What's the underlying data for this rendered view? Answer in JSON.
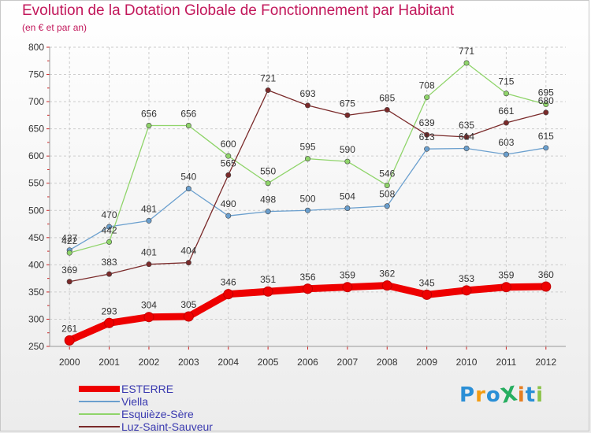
{
  "title": "Evolution de la Dotation Globale de Fonctionnement par Habitant",
  "subtitle": "(en € et par an)",
  "logo": {
    "text": "ProXiti",
    "letters": [
      "P",
      "r",
      "o",
      "X",
      "i",
      "t",
      "i"
    ],
    "colors": [
      "#2a8fd6",
      "#f39c12",
      "#2a8fd6",
      "#27ae60",
      "#e67e22",
      "#2a8fd6",
      "#8bc34a"
    ]
  },
  "chart_data": {
    "type": "line",
    "x": [
      "2000",
      "2001",
      "2002",
      "2003",
      "2004",
      "2005",
      "2006",
      "2007",
      "2008",
      "2009",
      "2010",
      "2011",
      "2012"
    ],
    "ylim": [
      250,
      800
    ],
    "yticks": [
      "250",
      "300",
      "350",
      "400",
      "450",
      "500",
      "550",
      "600",
      "650",
      "700",
      "750",
      "800"
    ],
    "xlabel": "",
    "ylabel": "",
    "grid": true,
    "legend_position": "bottom-left",
    "series": [
      {
        "name": "ESTERRE",
        "color": "#ee0000",
        "values": [
          261,
          293,
          304,
          305,
          346,
          351,
          356,
          359,
          362,
          345,
          353,
          359,
          360
        ],
        "labels": [
          "261",
          "293",
          "304",
          "305",
          "346",
          "351",
          "356",
          "359",
          "362",
          "345",
          "353",
          "359",
          "360"
        ]
      },
      {
        "name": "Viella",
        "color": "#6a9fce",
        "values": [
          427,
          470,
          481,
          540,
          490,
          498,
          500,
          504,
          508,
          613,
          614,
          603,
          615
        ],
        "labels": [
          "427",
          "470",
          "481",
          "540",
          "490",
          "498",
          "500",
          "504",
          "508",
          "613",
          "614",
          "603",
          "615"
        ]
      },
      {
        "name": "Esquièze-Sère",
        "color": "#8fd46a",
        "values": [
          422,
          442,
          656,
          656,
          600,
          550,
          595,
          590,
          546,
          708,
          771,
          715,
          695
        ],
        "labels": [
          "422",
          "442",
          "656",
          "656",
          "600",
          "550",
          "595",
          "590",
          "546",
          "708",
          "771",
          "715",
          "695"
        ]
      },
      {
        "name": "Luz-Saint-Sauveur",
        "color": "#7a2a2a",
        "values": [
          369,
          383,
          401,
          404,
          565,
          721,
          693,
          675,
          685,
          639,
          635,
          661,
          680
        ],
        "labels": [
          "369",
          "383",
          "401",
          "404",
          "565",
          "721",
          "693",
          "675",
          "685",
          "639",
          "635",
          "661",
          "680"
        ]
      }
    ]
  }
}
